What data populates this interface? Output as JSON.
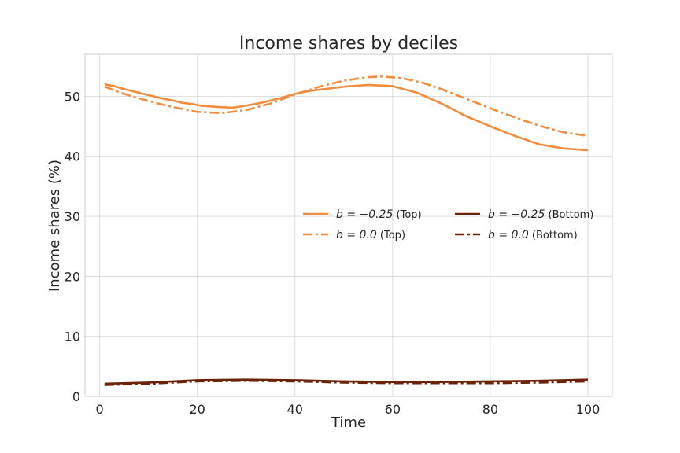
{
  "chart_data": {
    "type": "line",
    "title": "Income shares by deciles",
    "xlabel": "Time",
    "ylabel": "Income shares (%)",
    "xlim": [
      -3,
      105
    ],
    "ylim": [
      0,
      57
    ],
    "xticks": [
      "0",
      "20",
      "40",
      "60",
      "80",
      "100"
    ],
    "yticks": [
      "0",
      "10",
      "20",
      "30",
      "40",
      "50"
    ],
    "grid": true,
    "legend_position": "center-right",
    "series": [
      {
        "name": "b = −0.25 (Top)",
        "name_math": "b = −0.25",
        "name_suffix": " (Top)",
        "color": "#f58b3c",
        "style": "solid",
        "x": [
          1,
          3,
          5,
          7,
          9,
          11,
          13,
          15,
          17,
          19,
          21,
          23,
          25,
          27,
          29,
          31,
          33,
          35,
          37,
          40,
          43,
          46,
          50,
          55,
          60,
          65,
          70,
          75,
          80,
          85,
          90,
          95,
          100
        ],
        "y": [
          52.0,
          51.7,
          51.2,
          50.8,
          50.4,
          50.0,
          49.6,
          49.3,
          48.9,
          48.7,
          48.4,
          48.3,
          48.2,
          48.1,
          48.3,
          48.6,
          48.9,
          49.3,
          49.7,
          50.4,
          50.9,
          51.2,
          51.6,
          51.9,
          51.7,
          50.6,
          48.8,
          46.7,
          45.0,
          43.4,
          42.0,
          41.3,
          41.0
        ]
      },
      {
        "name": "b = 0.0 (Top)",
        "name_math": "b = 0.0",
        "name_suffix": " (Top)",
        "color": "#f58b3c",
        "style": "dashdot",
        "x": [
          1,
          5,
          10,
          15,
          20,
          25,
          30,
          35,
          40,
          45,
          50,
          55,
          58,
          62,
          66,
          70,
          75,
          80,
          85,
          90,
          95,
          100
        ],
        "y": [
          51.6,
          50.4,
          49.2,
          48.2,
          47.4,
          47.2,
          47.7,
          48.8,
          50.3,
          51.6,
          52.6,
          53.2,
          53.3,
          53.0,
          52.3,
          51.2,
          49.6,
          48.0,
          46.5,
          45.1,
          44.0,
          43.4
        ]
      },
      {
        "name": "b = −0.25 (Bottom)",
        "name_math": "b = −0.25",
        "name_suffix": " (Bottom)",
        "color": "#6b2208",
        "style": "solid",
        "x": [
          1,
          10,
          20,
          30,
          40,
          50,
          60,
          70,
          80,
          90,
          100
        ],
        "y": [
          2.1,
          2.3,
          2.7,
          2.8,
          2.7,
          2.5,
          2.4,
          2.4,
          2.5,
          2.6,
          2.8
        ]
      },
      {
        "name": "b = 0.0 (Bottom)",
        "name_math": "b = 0.0",
        "name_suffix": " (Bottom)",
        "color": "#6b2208",
        "style": "dashdot",
        "x": [
          1,
          10,
          20,
          30,
          40,
          50,
          60,
          70,
          80,
          90,
          100
        ],
        "y": [
          1.9,
          2.1,
          2.5,
          2.6,
          2.5,
          2.3,
          2.2,
          2.2,
          2.2,
          2.3,
          2.5
        ]
      }
    ]
  }
}
